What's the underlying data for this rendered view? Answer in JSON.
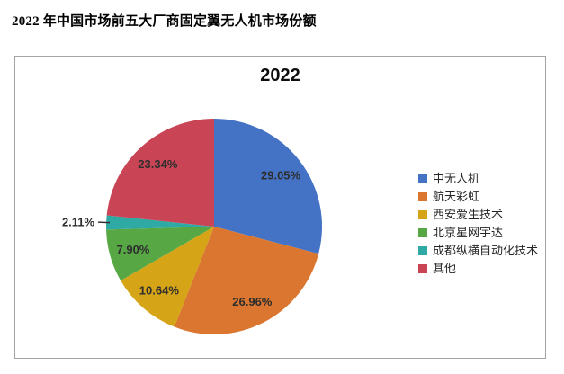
{
  "page": {
    "title": "2022 年中国市场前五大厂商固定翼无人机市场份额"
  },
  "chart_data": {
    "type": "pie",
    "title": "2022",
    "value_suffix": "%",
    "start_angle_deg": 0,
    "direction": "clockwise",
    "legend_position": "right",
    "slices": [
      {
        "label": "中无人机",
        "value": 29.05,
        "color": "#4472C4",
        "label_outside": false
      },
      {
        "label": "航天彩虹",
        "value": 26.96,
        "color": "#DA762F",
        "label_outside": false
      },
      {
        "label": "西安爱生技术",
        "value": 10.64,
        "color": "#D6A417",
        "label_outside": false
      },
      {
        "label": "北京星网宇达",
        "value": 7.9,
        "color": "#57A845",
        "label_outside": false
      },
      {
        "label": "成都纵横自动化技术",
        "value": 2.11,
        "color": "#2FA9A4",
        "label_outside": true
      },
      {
        "label": "其他",
        "value": 23.34,
        "color": "#C94556",
        "label_outside": false
      }
    ],
    "label_color": "#2e2e2e",
    "leader_line_color": "#333333"
  }
}
